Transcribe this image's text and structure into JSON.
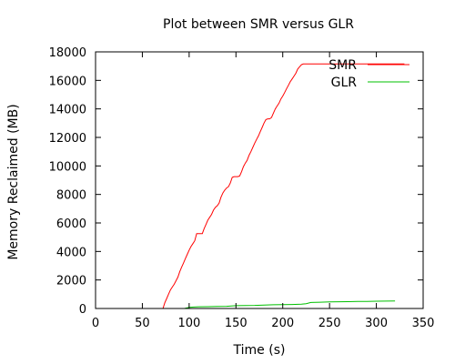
{
  "chart_data": {
    "type": "line",
    "title": "Plot between SMR versus GLR",
    "xlabel": "Time (s)",
    "ylabel": "Memory Reclaimed (MB)",
    "xlim": [
      0,
      350
    ],
    "ylim": [
      0,
      18000
    ],
    "xticks": [
      0,
      50,
      100,
      150,
      200,
      250,
      300,
      350
    ],
    "yticks": [
      0,
      2000,
      4000,
      6000,
      8000,
      10000,
      12000,
      14000,
      16000,
      18000
    ],
    "grid": false,
    "legend_position": "top-right",
    "series": [
      {
        "name": "SMR",
        "color": "#ff0000",
        "x": [
          72,
          74,
          76,
          78,
          80,
          82,
          84,
          86,
          88,
          90,
          92,
          94,
          96,
          98,
          100,
          102,
          104,
          106,
          108,
          110,
          112,
          114,
          116,
          118,
          120,
          122,
          124,
          126,
          128,
          130,
          132,
          134,
          136,
          138,
          140,
          142,
          144,
          146,
          148,
          150,
          152,
          154,
          156,
          158,
          160,
          162,
          164,
          166,
          168,
          170,
          172,
          174,
          176,
          178,
          180,
          182,
          184,
          186,
          188,
          190,
          192,
          194,
          196,
          198,
          200,
          202,
          204,
          206,
          208,
          210,
          212,
          214,
          216,
          218,
          220,
          222,
          224,
          226,
          228,
          230,
          232,
          234,
          236,
          238,
          240,
          242,
          244,
          246,
          248,
          250,
          252,
          254,
          256,
          258,
          260,
          265,
          270,
          280,
          290,
          300,
          310,
          320,
          330
        ],
        "y": [
          0,
          400,
          700,
          1000,
          1300,
          1500,
          1700,
          1950,
          2200,
          2600,
          2900,
          3200,
          3500,
          3800,
          4100,
          4350,
          4550,
          4750,
          5250,
          5250,
          5250,
          5250,
          5600,
          5900,
          6200,
          6400,
          6600,
          6900,
          7100,
          7200,
          7400,
          7800,
          8100,
          8300,
          8450,
          8550,
          8800,
          9200,
          9250,
          9250,
          9250,
          9300,
          9600,
          9950,
          10200,
          10400,
          10750,
          11000,
          11300,
          11600,
          11850,
          12100,
          12400,
          12700,
          13000,
          13250,
          13300,
          13300,
          13400,
          13700,
          14000,
          14200,
          14400,
          14700,
          14900,
          15150,
          15400,
          15650,
          15900,
          16100,
          16300,
          16500,
          16800,
          16950,
          17100,
          17150,
          17150,
          17150,
          17150,
          17150,
          17150,
          17150,
          17150,
          17150,
          17150,
          17150,
          17150,
          17150,
          17150,
          17150,
          17150,
          17150,
          17150,
          17150,
          17150,
          17150,
          17150,
          17150,
          17150,
          17150,
          17150,
          17150,
          17150
        ]
      },
      {
        "name": "GLR",
        "color": "#00c000",
        "x": [
          85,
          95,
          100,
          105,
          110,
          120,
          130,
          140,
          145,
          150,
          160,
          170,
          180,
          190,
          200,
          210,
          220,
          225,
          230,
          240,
          250,
          260,
          270,
          280,
          290,
          300,
          310,
          320
        ],
        "y": [
          0,
          0,
          80,
          100,
          120,
          130,
          140,
          150,
          180,
          200,
          210,
          220,
          240,
          260,
          270,
          280,
          300,
          340,
          420,
          440,
          460,
          470,
          480,
          490,
          500,
          510,
          520,
          530
        ]
      }
    ]
  }
}
